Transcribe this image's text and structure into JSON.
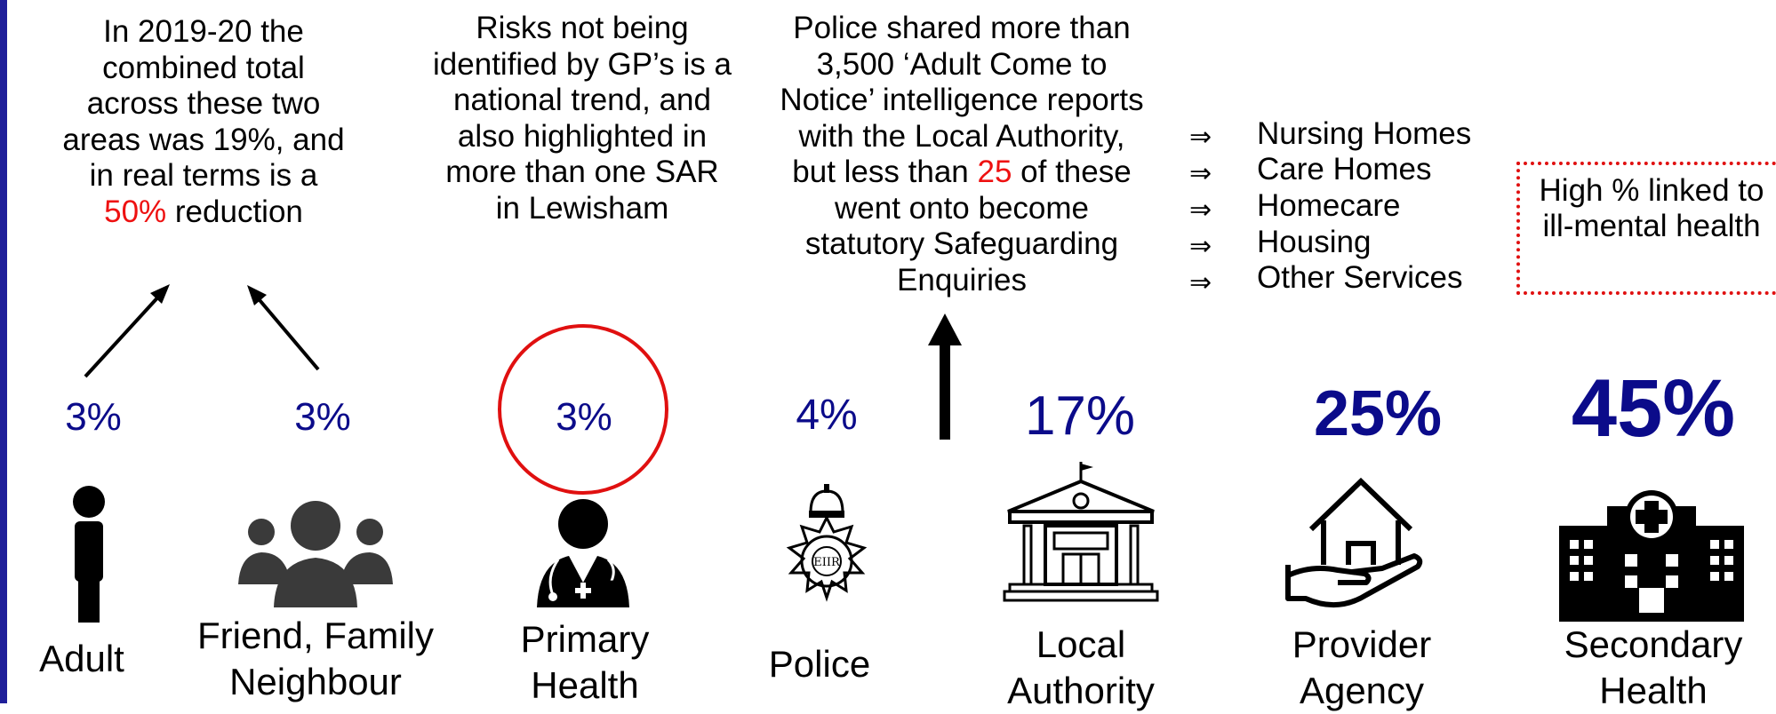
{
  "notes": {
    "adult_text1": "In 2019-20 the combined total across these two areas was 19%, and in real terms is a",
    "adult_red": "50%",
    "adult_text2": "reduction",
    "gp": "Risks not being identified by GP’s is a national trend, and also highlighted in more than one SAR in Lewisham",
    "police_text1": "Police shared more than 3,500 ‘Adult Come to Notice’ intelligence reports with the Local Authority, but less than",
    "police_red": "25",
    "police_text2": "of these went onto become statutory Safeguarding Enquiries"
  },
  "services": {
    "bullet": "⇒",
    "items": [
      "Nursing Homes",
      "Care Homes",
      "Homecare",
      "Housing",
      "Other Services"
    ]
  },
  "callout": "High % linked to ill-mental health",
  "percentages": {
    "adult": "3%",
    "friends": "3%",
    "primary": "3%",
    "police": "4%",
    "local": "17%",
    "provider": "25%",
    "secondary": "45%"
  },
  "labels": {
    "adult": "Adult",
    "friends": "Friend, Family Neighbour",
    "primary": "Primary Health",
    "police": "Police",
    "local": "Local Authority",
    "provider": "Provider Agency",
    "secondary": "Secondary Health"
  },
  "icons": {
    "adult": "person-icon",
    "friends": "group-icon",
    "primary": "doctor-icon",
    "police": "police-badge-icon",
    "local": "town-hall-icon",
    "provider": "house-in-hand-icon",
    "secondary": "hospital-icon"
  },
  "colors": {
    "percent": "#0b0b8a",
    "highlight": "#ee1111",
    "left_bar": "#1f1f9a"
  }
}
